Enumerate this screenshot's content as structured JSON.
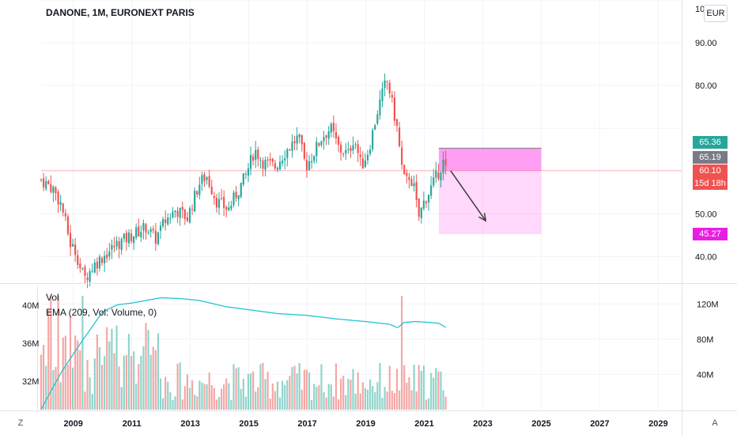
{
  "header": {
    "title": "DANONE, 1M, EURONEXT PARIS",
    "currency": "EUR"
  },
  "price_axis": {
    "ticks": [
      {
        "label": "90.00",
        "value": 90
      },
      {
        "label": "80.00",
        "value": 80
      },
      {
        "label": "50.00",
        "value": 50
      },
      {
        "label": "40.00",
        "value": 40
      }
    ],
    "top_partial_label": "10"
  },
  "badges": {
    "target_top": {
      "label": "65.36",
      "value": 65.36,
      "color": "#26a69a"
    },
    "prev_close": {
      "label": "65.19",
      "value": 65.19,
      "color": "#787b86"
    },
    "last": {
      "label": "60.10",
      "value": 60.1,
      "sub": "15d 18h",
      "color": "#ef5350"
    },
    "target_bottom": {
      "label": "45.27",
      "value": 45.27,
      "color": "#e91ee3"
    }
  },
  "time_axis": {
    "ticks": [
      "2009",
      "2011",
      "2013",
      "2015",
      "2017",
      "2019",
      "2021",
      "2023",
      "2025",
      "2027",
      "2029"
    ]
  },
  "volume_pane": {
    "label": "Vol",
    "ema_label": "EMA (209, Vol: Volume, 0)",
    "left_ticks": [
      {
        "label": "40M",
        "value": 40
      },
      {
        "label": "36M",
        "value": 36
      },
      {
        "label": "32M",
        "value": 32
      }
    ],
    "right_ticks": [
      {
        "label": "120M",
        "value": 120
      },
      {
        "label": "80M",
        "value": 80
      },
      {
        "label": "40M",
        "value": 40
      }
    ]
  },
  "corners": {
    "left": "Z",
    "right": "A"
  },
  "colors": {
    "up": "#26a69a",
    "down": "#ef5350",
    "ema": "#22c4d0",
    "projection": "#ff8df0",
    "up_vol": "#8fd3ca",
    "down_vol": "#f4a6a4"
  },
  "chart_data": {
    "type": "candlestick",
    "title": "DANONE, 1M, EURONEXT PARIS",
    "interval": "1M",
    "currency": "EUR",
    "ylim": [
      34,
      100
    ],
    "x_range": [
      2007.9,
      2029.8
    ],
    "close_anchors": [
      [
        2007.9,
        58
      ],
      [
        2008.3,
        56
      ],
      [
        2008.6,
        52
      ],
      [
        2008.9,
        43
      ],
      [
        2009.1,
        41
      ],
      [
        2009.25,
        37
      ],
      [
        2009.4,
        35
      ],
      [
        2009.7,
        38
      ],
      [
        2010.0,
        40
      ],
      [
        2010.5,
        43
      ],
      [
        2011.0,
        45
      ],
      [
        2011.5,
        47
      ],
      [
        2011.8,
        44
      ],
      [
        2012.1,
        48
      ],
      [
        2012.5,
        51
      ],
      [
        2012.9,
        49
      ],
      [
        2013.3,
        57
      ],
      [
        2013.55,
        59
      ],
      [
        2013.9,
        53
      ],
      [
        2014.3,
        51
      ],
      [
        2014.6,
        55
      ],
      [
        2014.9,
        59
      ],
      [
        2015.2,
        65
      ],
      [
        2015.5,
        62
      ],
      [
        2015.9,
        61
      ],
      [
        2016.3,
        65
      ],
      [
        2016.7,
        68
      ],
      [
        2016.95,
        61
      ],
      [
        2017.2,
        64
      ],
      [
        2017.5,
        68
      ],
      [
        2017.8,
        70
      ],
      [
        2018.1,
        65
      ],
      [
        2018.4,
        64
      ],
      [
        2018.6,
        68
      ],
      [
        2018.85,
        61
      ],
      [
        2019.1,
        65
      ],
      [
        2019.4,
        74
      ],
      [
        2019.65,
        80
      ],
      [
        2019.75,
        81
      ],
      [
        2019.95,
        74
      ],
      [
        2020.1,
        69
      ],
      [
        2020.2,
        62
      ],
      [
        2020.35,
        57
      ],
      [
        2020.5,
        59
      ],
      [
        2020.65,
        56
      ],
      [
        2020.8,
        49
      ],
      [
        2021.0,
        53
      ],
      [
        2021.3,
        57
      ],
      [
        2021.5,
        60
      ],
      [
        2021.65,
        62
      ],
      [
        2021.75,
        60
      ]
    ],
    "last_price": 60.1,
    "projection": {
      "start_year": 2021.5,
      "end_year": 2025.0,
      "entry": 60.1,
      "target": 65.36,
      "stop": 45.27,
      "arrow_from": [
        2021.9,
        60.1
      ],
      "arrow_to": [
        2023.1,
        48.4
      ]
    },
    "volume": {
      "unit": "M",
      "left_axis_range": [
        29,
        42
      ],
      "ema_right_axis_range": [
        0,
        140
      ],
      "ema_anchors": [
        [
          2007.9,
          0
        ],
        [
          2008.2,
          19
        ],
        [
          2008.6,
          43
        ],
        [
          2009.0,
          63
        ],
        [
          2009.3,
          78
        ],
        [
          2009.6,
          92
        ],
        [
          2010.0,
          111
        ],
        [
          2010.5,
          119
        ],
        [
          2011.0,
          121
        ],
        [
          2011.5,
          124
        ],
        [
          2012.0,
          127
        ],
        [
          2012.7,
          126
        ],
        [
          2013.3,
          124
        ],
        [
          2014.2,
          117
        ],
        [
          2015.1,
          113
        ],
        [
          2016.0,
          109
        ],
        [
          2017.0,
          107
        ],
        [
          2018.0,
          103
        ],
        [
          2019.0,
          100
        ],
        [
          2019.8,
          97
        ],
        [
          2020.1,
          93
        ],
        [
          2020.3,
          99
        ],
        [
          2020.7,
          100
        ],
        [
          2021.2,
          99
        ],
        [
          2021.5,
          98
        ],
        [
          2021.75,
          93
        ]
      ],
      "spike_years": [
        2008.2,
        2008.5,
        2009.3,
        2020.2
      ]
    }
  }
}
